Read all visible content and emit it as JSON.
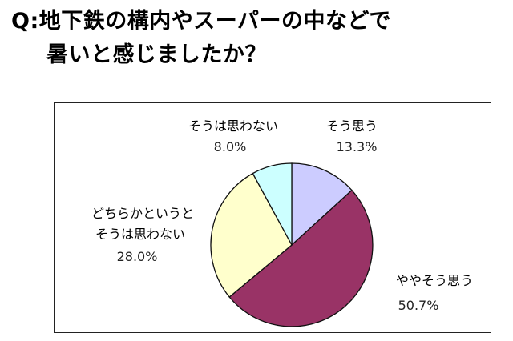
{
  "question": {
    "line1": "Q:地下鉄の構内やスーパーの中などで",
    "line2": "暑いと感じましたか？"
  },
  "chart_data": {
    "type": "pie",
    "title": "",
    "slices": [
      {
        "label": "そう思う",
        "value": 13.3,
        "value_text": "13.3%",
        "color": "#ccccff"
      },
      {
        "label": "ややそう思う",
        "value": 50.7,
        "value_text": "50.7%",
        "color": "#993366"
      },
      {
        "label": "どちらかというとそう思わない",
        "label_line1": "どちらかというと",
        "label_line2": "そうは思わない",
        "value": 28.0,
        "value_text": "28.0%",
        "color": "#ffffcc"
      },
      {
        "label": "そうは思わない",
        "value": 8.0,
        "value_text": "8.0%",
        "color": "#ccffff"
      }
    ]
  }
}
